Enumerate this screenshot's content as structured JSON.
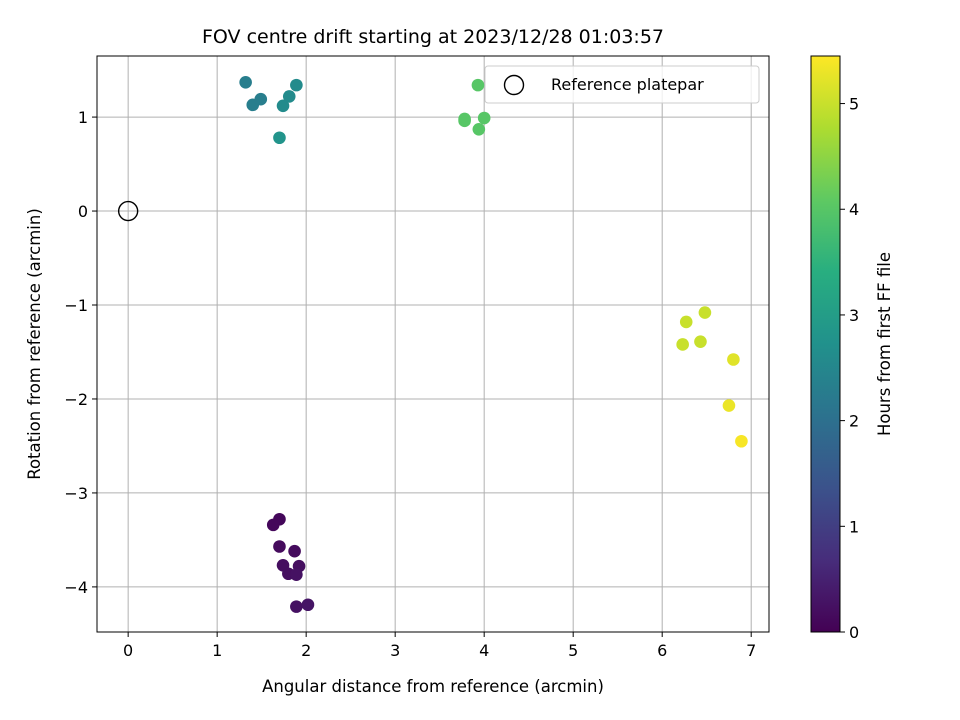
{
  "chart_data": {
    "type": "scatter",
    "title": "FOV centre drift starting at 2023/12/28 01:03:57",
    "xlabel": "Angular distance from reference (arcmin)",
    "ylabel": "Rotation from reference (arcmin)",
    "xlim": [
      -0.35,
      7.2
    ],
    "ylim": [
      -4.48,
      1.65
    ],
    "xticks": [
      0,
      1,
      2,
      3,
      4,
      5,
      6,
      7
    ],
    "xtick_labels": [
      "0",
      "1",
      "2",
      "3",
      "4",
      "5",
      "6",
      "7"
    ],
    "yticks": [
      -4,
      -3,
      -2,
      -1,
      0,
      1
    ],
    "ytick_labels": [
      "−4",
      "−3",
      "−2",
      "−1",
      "0",
      "1"
    ],
    "grid": true,
    "legend": {
      "position": "top-right",
      "entries": [
        "Reference platepar"
      ]
    },
    "colorbar": {
      "label": "Hours from first FF file",
      "range": [
        0,
        5.45
      ],
      "ticks": [
        0,
        1,
        2,
        3,
        4,
        5
      ],
      "tick_labels": [
        "0",
        "1",
        "2",
        "3",
        "4",
        "5"
      ],
      "colormap": "viridis"
    },
    "reference_point": {
      "name": "Reference platepar",
      "x": 0,
      "y": 0
    },
    "points": [
      {
        "x": 1.7,
        "y": -3.28,
        "hours": 0.1
      },
      {
        "x": 1.63,
        "y": -3.34,
        "hours": 0.1
      },
      {
        "x": 1.7,
        "y": -3.57,
        "hours": 0.15
      },
      {
        "x": 1.87,
        "y": -3.62,
        "hours": 0.15
      },
      {
        "x": 1.74,
        "y": -3.77,
        "hours": 0.2
      },
      {
        "x": 1.8,
        "y": -3.86,
        "hours": 0.2
      },
      {
        "x": 1.92,
        "y": -3.78,
        "hours": 0.2
      },
      {
        "x": 1.89,
        "y": -3.87,
        "hours": 0.25
      },
      {
        "x": 1.89,
        "y": -4.21,
        "hours": 0.25
      },
      {
        "x": 2.02,
        "y": -4.19,
        "hours": 0.3
      },
      {
        "x": 1.32,
        "y": 1.37,
        "hours": 2.3
      },
      {
        "x": 1.4,
        "y": 1.13,
        "hours": 2.3
      },
      {
        "x": 1.49,
        "y": 1.19,
        "hours": 2.3
      },
      {
        "x": 1.74,
        "y": 1.12,
        "hours": 2.6
      },
      {
        "x": 1.81,
        "y": 1.22,
        "hours": 2.6
      },
      {
        "x": 1.89,
        "y": 1.34,
        "hours": 2.6
      },
      {
        "x": 1.7,
        "y": 0.78,
        "hours": 2.8
      },
      {
        "x": 3.93,
        "y": 1.34,
        "hours": 4.0
      },
      {
        "x": 3.78,
        "y": 0.98,
        "hours": 4.0
      },
      {
        "x": 3.78,
        "y": 0.96,
        "hours": 4.0
      },
      {
        "x": 4.0,
        "y": 0.99,
        "hours": 4.0
      },
      {
        "x": 3.94,
        "y": 0.87,
        "hours": 4.0
      },
      {
        "x": 6.48,
        "y": -1.08,
        "hours": 5.0
      },
      {
        "x": 6.27,
        "y": -1.18,
        "hours": 5.0
      },
      {
        "x": 6.43,
        "y": -1.39,
        "hours": 5.0
      },
      {
        "x": 6.23,
        "y": -1.42,
        "hours": 5.0
      },
      {
        "x": 6.8,
        "y": -1.58,
        "hours": 5.2
      },
      {
        "x": 6.75,
        "y": -2.07,
        "hours": 5.3
      },
      {
        "x": 6.89,
        "y": -2.45,
        "hours": 5.4
      }
    ]
  }
}
